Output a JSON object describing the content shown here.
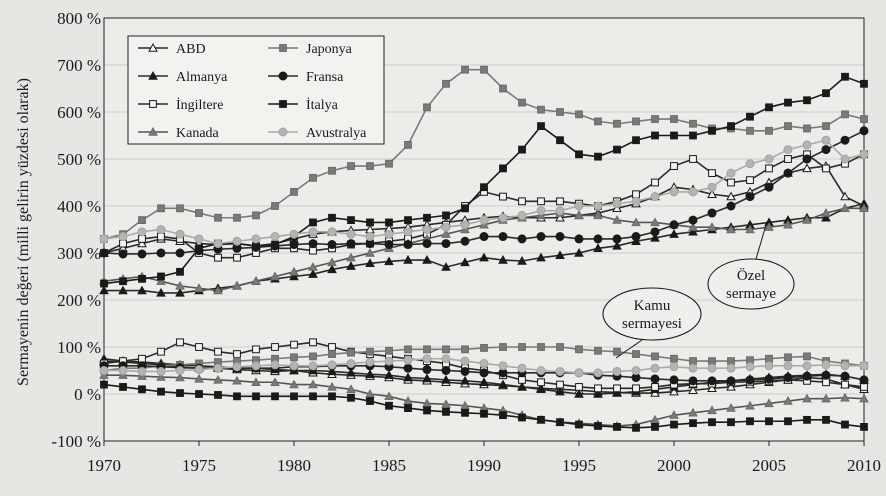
{
  "chart_data": {
    "type": "line",
    "ylabel": "Sermayenin değeri (milli gelirin yüzdesi olarak)",
    "xlabel": "",
    "title": "",
    "xlim": [
      1970,
      2010
    ],
    "ylim": [
      -100,
      800
    ],
    "x_ticks": [
      1970,
      1975,
      1980,
      1985,
      1990,
      1995,
      2000,
      2005,
      2010
    ],
    "y_ticks": [
      -100,
      0,
      100,
      200,
      300,
      400,
      500,
      600,
      700,
      800
    ],
    "y_tick_labels": [
      "-100 %",
      "0 %",
      "100 %",
      "200 %",
      "300 %",
      "400 %",
      "500 %",
      "600 %",
      "700 %",
      "800 %"
    ],
    "x": [
      1970,
      1971,
      1972,
      1973,
      1974,
      1975,
      1976,
      1977,
      1978,
      1979,
      1980,
      1981,
      1982,
      1983,
      1984,
      1985,
      1986,
      1987,
      1988,
      1989,
      1990,
      1991,
      1992,
      1993,
      1994,
      1995,
      1996,
      1997,
      1998,
      1999,
      2000,
      2001,
      2002,
      2003,
      2004,
      2005,
      2006,
      2007,
      2008,
      2009,
      2010
    ],
    "legend_position": "top-left",
    "grid": true,
    "annotations": [
      {
        "id": "kamu",
        "text": [
          "Kamu",
          "sermayesi"
        ]
      },
      {
        "id": "ozel",
        "text": [
          "Özel",
          "sermaye"
        ]
      }
    ],
    "series": [
      {
        "name": "ABD",
        "marker": "triangle-open",
        "color": "#2a2a2a",
        "private": [
          300,
          310,
          320,
          330,
          325,
          320,
          318,
          320,
          315,
          320,
          330,
          340,
          345,
          348,
          350,
          352,
          355,
          360,
          365,
          370,
          375,
          378,
          375,
          375,
          375,
          380,
          385,
          395,
          405,
          420,
          440,
          435,
          425,
          420,
          430,
          450,
          470,
          480,
          485,
          420,
          400
        ],
        "public": [
          70,
          68,
          65,
          62,
          58,
          55,
          55,
          52,
          50,
          48,
          50,
          45,
          42,
          40,
          38,
          35,
          30,
          28,
          25,
          22,
          20,
          18,
          15,
          12,
          10,
          8,
          5,
          3,
          2,
          2,
          5,
          8,
          12,
          15,
          20,
          25,
          30,
          35,
          32,
          20,
          10
        ]
      },
      {
        "name": "Almanya",
        "marker": "triangle-filled",
        "color": "#2a2a2a",
        "private": [
          220,
          220,
          220,
          215,
          215,
          220,
          225,
          230,
          240,
          245,
          250,
          255,
          265,
          272,
          278,
          282,
          285,
          285,
          270,
          280,
          290,
          285,
          283,
          290,
          295,
          300,
          310,
          315,
          325,
          332,
          340,
          345,
          350,
          355,
          360,
          365,
          370,
          375,
          375,
          395,
          405
        ],
        "public": [
          75,
          70,
          68,
          65,
          62,
          60,
          58,
          55,
          55,
          52,
          50,
          50,
          48,
          45,
          42,
          40,
          35,
          33,
          30,
          28,
          25,
          20,
          15,
          10,
          5,
          0,
          0,
          2,
          5,
          10,
          15,
          20,
          25,
          28,
          32,
          35,
          38,
          40,
          42,
          38,
          30
        ]
      },
      {
        "name": "İngiltere",
        "marker": "square-open",
        "color": "#2a2a2a",
        "private": [
          300,
          320,
          330,
          335,
          330,
          300,
          290,
          290,
          300,
          310,
          310,
          305,
          310,
          318,
          320,
          325,
          330,
          340,
          360,
          400,
          430,
          420,
          410,
          410,
          410,
          405,
          400,
          410,
          425,
          450,
          485,
          500,
          470,
          450,
          455,
          480,
          500,
          510,
          480,
          490,
          510
        ],
        "public": [
          65,
          70,
          75,
          90,
          110,
          100,
          90,
          85,
          95,
          100,
          105,
          110,
          100,
          90,
          85,
          80,
          75,
          70,
          65,
          55,
          50,
          40,
          30,
          25,
          20,
          15,
          12,
          12,
          12,
          15,
          20,
          22,
          22,
          25,
          26,
          28,
          30,
          28,
          25,
          20,
          15
        ]
      },
      {
        "name": "Kanada",
        "marker": "triangle-gray",
        "color": "#555555",
        "private": [
          240,
          245,
          250,
          240,
          230,
          225,
          220,
          230,
          240,
          250,
          260,
          270,
          280,
          290,
          300,
          310,
          320,
          330,
          340,
          350,
          360,
          370,
          375,
          380,
          385,
          380,
          380,
          370,
          365,
          365,
          360,
          355,
          355,
          350,
          350,
          355,
          360,
          370,
          385,
          395,
          395
        ],
        "public": [
          40,
          40,
          38,
          36,
          35,
          32,
          30,
          28,
          25,
          25,
          20,
          20,
          15,
          10,
          0,
          -5,
          -15,
          -20,
          -22,
          -25,
          -30,
          -35,
          -45,
          -55,
          -60,
          -62,
          -65,
          -68,
          -65,
          -55,
          -45,
          -40,
          -35,
          -30,
          -25,
          -20,
          -15,
          -10,
          -10,
          -8,
          -10
        ]
      },
      {
        "name": "Japonya",
        "marker": "square-gray",
        "color": "#7a7a7a",
        "private": [
          330,
          340,
          370,
          395,
          395,
          385,
          375,
          375,
          380,
          400,
          430,
          460,
          475,
          485,
          485,
          490,
          530,
          610,
          660,
          690,
          690,
          650,
          620,
          605,
          600,
          595,
          580,
          575,
          580,
          585,
          585,
          575,
          565,
          565,
          560,
          560,
          570,
          565,
          570,
          595,
          585
        ],
        "public": [
          50,
          55,
          55,
          60,
          62,
          65,
          68,
          70,
          72,
          75,
          78,
          80,
          85,
          88,
          90,
          92,
          95,
          95,
          95,
          95,
          98,
          100,
          100,
          100,
          100,
          95,
          92,
          90,
          85,
          80,
          75,
          70,
          70,
          70,
          72,
          75,
          78,
          80,
          70,
          65,
          60
        ]
      },
      {
        "name": "Fransa",
        "marker": "circle-filled",
        "color": "#2a2a2a",
        "private": [
          300,
          298,
          298,
          300,
          300,
          305,
          308,
          310,
          312,
          315,
          318,
          320,
          318,
          320,
          320,
          318,
          318,
          320,
          320,
          325,
          335,
          335,
          330,
          335,
          335,
          330,
          330,
          330,
          335,
          345,
          360,
          370,
          385,
          400,
          420,
          440,
          470,
          500,
          520,
          540,
          560
        ],
        "public": [
          60,
          60,
          60,
          58,
          56,
          55,
          55,
          55,
          55,
          55,
          58,
          58,
          60,
          60,
          60,
          58,
          55,
          52,
          50,
          48,
          45,
          45,
          45,
          45,
          45,
          45,
          40,
          38,
          35,
          32,
          30,
          28,
          28,
          28,
          30,
          32,
          35,
          38,
          40,
          38,
          30
        ]
      },
      {
        "name": "İtalya",
        "marker": "square-filled",
        "color": "#1a1a1a",
        "private": [
          235,
          240,
          245,
          250,
          260,
          310,
          320,
          320,
          315,
          318,
          335,
          365,
          375,
          370,
          365,
          365,
          370,
          375,
          380,
          395,
          440,
          480,
          520,
          570,
          540,
          510,
          505,
          520,
          540,
          550,
          550,
          550,
          560,
          570,
          590,
          610,
          620,
          625,
          640,
          675,
          660
        ],
        "public": [
          20,
          15,
          10,
          5,
          2,
          0,
          -2,
          -5,
          -5,
          -5,
          -5,
          -5,
          -5,
          -8,
          -15,
          -25,
          -30,
          -35,
          -38,
          -40,
          -42,
          -45,
          -50,
          -55,
          -60,
          -65,
          -68,
          -70,
          -72,
          -70,
          -65,
          -62,
          -60,
          -60,
          -58,
          -58,
          -58,
          -55,
          -55,
          -65,
          -70
        ]
      },
      {
        "name": "Avustralya",
        "marker": "circle-light",
        "color": "#aaaaaa",
        "private": [
          330,
          335,
          345,
          350,
          340,
          330,
          320,
          325,
          330,
          335,
          340,
          345,
          345,
          340,
          335,
          340,
          345,
          350,
          355,
          360,
          370,
          375,
          380,
          390,
          390,
          400,
          400,
          405,
          410,
          420,
          430,
          430,
          440,
          470,
          490,
          500,
          520,
          530,
          540,
          500,
          510
        ],
        "public": [
          50,
          50,
          48,
          48,
          50,
          52,
          55,
          58,
          60,
          62,
          60,
          60,
          62,
          65,
          68,
          70,
          72,
          75,
          75,
          70,
          65,
          60,
          55,
          50,
          48,
          45,
          45,
          48,
          50,
          55,
          58,
          55,
          55,
          55,
          58,
          60,
          60,
          60,
          62,
          60,
          60
        ]
      }
    ]
  }
}
